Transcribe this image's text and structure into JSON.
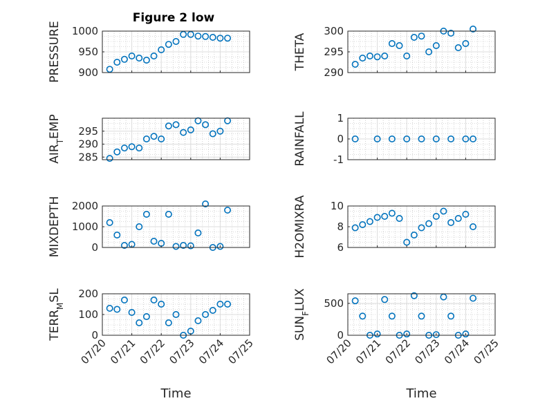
{
  "figure_title": "Figure 2 low",
  "colors": {
    "marker": "#0072BD",
    "axis": "#262626",
    "grid_major": "#dcdcdc",
    "grid_minor": "#b4b4b4"
  },
  "x_tick_labels": [
    "07/20",
    "07/21",
    "07/22",
    "07/23",
    "07/24",
    "07/25"
  ],
  "chart_data": [
    {
      "type": "scatter",
      "title": "Figure 2 low",
      "ylabel": "PRESSURE",
      "ylabel_main": "PRESSURE",
      "ylabel_sub": "",
      "ylabel_tail": "",
      "xlabel": "",
      "grid": "major-and-minor",
      "xlim": [
        "07/20",
        "07/25"
      ],
      "ylim": [
        900,
        1000
      ],
      "yticks": [
        900,
        950,
        1000
      ],
      "yticklabels": [
        "900",
        "950",
        "1000"
      ],
      "x": [
        "07/20 06:00",
        "07/20 12:00",
        "07/20 18:00",
        "07/21 00:00",
        "07/21 06:00",
        "07/21 12:00",
        "07/21 18:00",
        "07/22 00:00",
        "07/22 06:00",
        "07/22 12:00",
        "07/22 18:00",
        "07/23 00:00",
        "07/23 06:00",
        "07/23 12:00",
        "07/23 18:00",
        "07/24 00:00",
        "07/24 06:00"
      ],
      "y": [
        908,
        925,
        932,
        940,
        935,
        930,
        940,
        955,
        968,
        975,
        992,
        992,
        988,
        987,
        985,
        983,
        983
      ]
    },
    {
      "type": "scatter",
      "title": "",
      "ylabel": "THETA",
      "ylabel_main": "THETA",
      "ylabel_sub": "",
      "ylabel_tail": "",
      "xlabel": "",
      "grid": "major-and-minor",
      "xlim": [
        "07/20",
        "07/25"
      ],
      "ylim": [
        290,
        300
      ],
      "yticks": [
        290,
        295,
        300
      ],
      "yticklabels": [
        "290",
        "295",
        "300"
      ],
      "x": [
        "07/20 06:00",
        "07/20 12:00",
        "07/20 18:00",
        "07/21 00:00",
        "07/21 06:00",
        "07/21 12:00",
        "07/21 18:00",
        "07/22 00:00",
        "07/22 06:00",
        "07/22 12:00",
        "07/22 18:00",
        "07/23 00:00",
        "07/23 06:00",
        "07/23 12:00",
        "07/23 18:00",
        "07/24 00:00",
        "07/24 06:00"
      ],
      "y": [
        292,
        293.5,
        294,
        293.8,
        294,
        297,
        296.5,
        294,
        298.5,
        298.8,
        295,
        296.5,
        300,
        299.5,
        296,
        297,
        300.5
      ]
    },
    {
      "type": "scatter",
      "title": "",
      "ylabel": "AIR_TEMP",
      "ylabel_main": "AIR",
      "ylabel_sub": "T",
      "ylabel_tail": "EMP",
      "xlabel": "",
      "grid": "major-and-minor",
      "xlim": [
        "07/20",
        "07/25"
      ],
      "ylim": [
        284,
        300
      ],
      "yticks": [
        285,
        290,
        295
      ],
      "yticklabels": [
        "285",
        "290",
        "295"
      ],
      "x": [
        "07/20 06:00",
        "07/20 12:00",
        "07/20 18:00",
        "07/21 00:00",
        "07/21 06:00",
        "07/21 12:00",
        "07/21 18:00",
        "07/22 00:00",
        "07/22 06:00",
        "07/22 12:00",
        "07/22 18:00",
        "07/23 00:00",
        "07/23 06:00",
        "07/23 12:00",
        "07/23 18:00",
        "07/24 00:00",
        "07/24 06:00"
      ],
      "y": [
        284.5,
        287,
        288.5,
        289,
        288.5,
        292,
        293,
        292,
        297,
        297.5,
        294.5,
        295.5,
        299,
        297.5,
        294,
        295,
        299
      ]
    },
    {
      "type": "scatter",
      "title": "",
      "ylabel": "RAINFALL",
      "ylabel_main": "RAINFALL",
      "ylabel_sub": "",
      "ylabel_tail": "",
      "xlabel": "",
      "grid": "major-and-minor",
      "xlim": [
        "07/20",
        "07/25"
      ],
      "ylim": [
        -1,
        1
      ],
      "yticks": [
        -1,
        0,
        1
      ],
      "yticklabels": [
        "-1",
        "0",
        "1"
      ],
      "x": [
        "07/20 06:00",
        "07/21 00:00",
        "07/21 12:00",
        "07/22 00:00",
        "07/22 12:00",
        "07/23 00:00",
        "07/23 12:00",
        "07/24 00:00",
        "07/24 06:00"
      ],
      "y": [
        0,
        0,
        0,
        0,
        0,
        0,
        0,
        0,
        0
      ]
    },
    {
      "type": "scatter",
      "title": "",
      "ylabel": "MIXDEPTH",
      "ylabel_main": "MIXDEPTH",
      "ylabel_sub": "",
      "ylabel_tail": "",
      "xlabel": "",
      "grid": "major-and-minor",
      "xlim": [
        "07/20",
        "07/25"
      ],
      "ylim": [
        0,
        2000
      ],
      "yticks": [
        0,
        1000,
        2000
      ],
      "yticklabels": [
        "0",
        "1000",
        "2000"
      ],
      "x": [
        "07/20 06:00",
        "07/20 12:00",
        "07/20 18:00",
        "07/21 00:00",
        "07/21 06:00",
        "07/21 12:00",
        "07/21 18:00",
        "07/22 00:00",
        "07/22 06:00",
        "07/22 12:00",
        "07/22 18:00",
        "07/23 00:00",
        "07/23 06:00",
        "07/23 12:00",
        "07/23 18:00",
        "07/24 00:00",
        "07/24 06:00"
      ],
      "y": [
        1200,
        600,
        100,
        150,
        1000,
        1600,
        300,
        200,
        1600,
        50,
        100,
        80,
        700,
        2100,
        0,
        50,
        1800
      ]
    },
    {
      "type": "scatter",
      "title": "",
      "ylabel": "H2OMIXRA",
      "ylabel_main": "H2OMIXRA",
      "ylabel_sub": "",
      "ylabel_tail": "",
      "xlabel": "",
      "grid": "major-and-minor",
      "xlim": [
        "07/20",
        "07/25"
      ],
      "ylim": [
        6,
        10
      ],
      "yticks": [
        6,
        8,
        10
      ],
      "yticklabels": [
        "6",
        "8",
        "10"
      ],
      "x": [
        "07/20 06:00",
        "07/20 12:00",
        "07/20 18:00",
        "07/21 00:00",
        "07/21 06:00",
        "07/21 12:00",
        "07/21 18:00",
        "07/22 00:00",
        "07/22 06:00",
        "07/22 12:00",
        "07/22 18:00",
        "07/23 00:00",
        "07/23 06:00",
        "07/23 12:00",
        "07/23 18:00",
        "07/24 00:00",
        "07/24 06:00"
      ],
      "y": [
        7.9,
        8.2,
        8.5,
        8.9,
        9.0,
        9.3,
        8.8,
        6.5,
        7.2,
        7.9,
        8.3,
        9.0,
        9.5,
        8.4,
        8.8,
        9.2,
        8.0
      ]
    },
    {
      "type": "scatter",
      "title": "",
      "ylabel": "TERR_MSL",
      "ylabel_main": "TERR",
      "ylabel_sub": "M",
      "ylabel_tail": "SL",
      "xlabel": "Time",
      "grid": "major-and-minor",
      "xlim": [
        "07/20",
        "07/25"
      ],
      "ylim": [
        0,
        200
      ],
      "yticks": [
        0,
        100,
        200
      ],
      "yticklabels": [
        "0",
        "100",
        "200"
      ],
      "x": [
        "07/20 06:00",
        "07/20 12:00",
        "07/20 18:00",
        "07/21 00:00",
        "07/21 06:00",
        "07/21 12:00",
        "07/21 18:00",
        "07/22 00:00",
        "07/22 06:00",
        "07/22 12:00",
        "07/22 18:00",
        "07/23 00:00",
        "07/23 06:00",
        "07/23 12:00",
        "07/23 18:00",
        "07/24 00:00",
        "07/24 06:00"
      ],
      "y": [
        130,
        125,
        170,
        110,
        60,
        90,
        170,
        150,
        60,
        100,
        0,
        20,
        70,
        100,
        120,
        150,
        150
      ]
    },
    {
      "type": "scatter",
      "title": "",
      "ylabel": "SUN_FLUX",
      "ylabel_main": "SUN",
      "ylabel_sub": "F",
      "ylabel_tail": "LUX",
      "xlabel": "Time",
      "grid": "major-and-minor",
      "xlim": [
        "07/20",
        "07/25"
      ],
      "ylim": [
        0,
        650
      ],
      "yticks": [
        0,
        500
      ],
      "yticklabels": [
        "0",
        "500"
      ],
      "x": [
        "07/20 06:00",
        "07/20 12:00",
        "07/20 18:00",
        "07/21 00:00",
        "07/21 06:00",
        "07/21 12:00",
        "07/21 18:00",
        "07/22 00:00",
        "07/22 06:00",
        "07/22 12:00",
        "07/22 18:00",
        "07/23 00:00",
        "07/23 06:00",
        "07/23 12:00",
        "07/23 18:00",
        "07/24 00:00",
        "07/24 06:00"
      ],
      "y": [
        540,
        300,
        0,
        20,
        560,
        300,
        0,
        20,
        620,
        300,
        0,
        10,
        600,
        300,
        0,
        20,
        580
      ]
    }
  ]
}
